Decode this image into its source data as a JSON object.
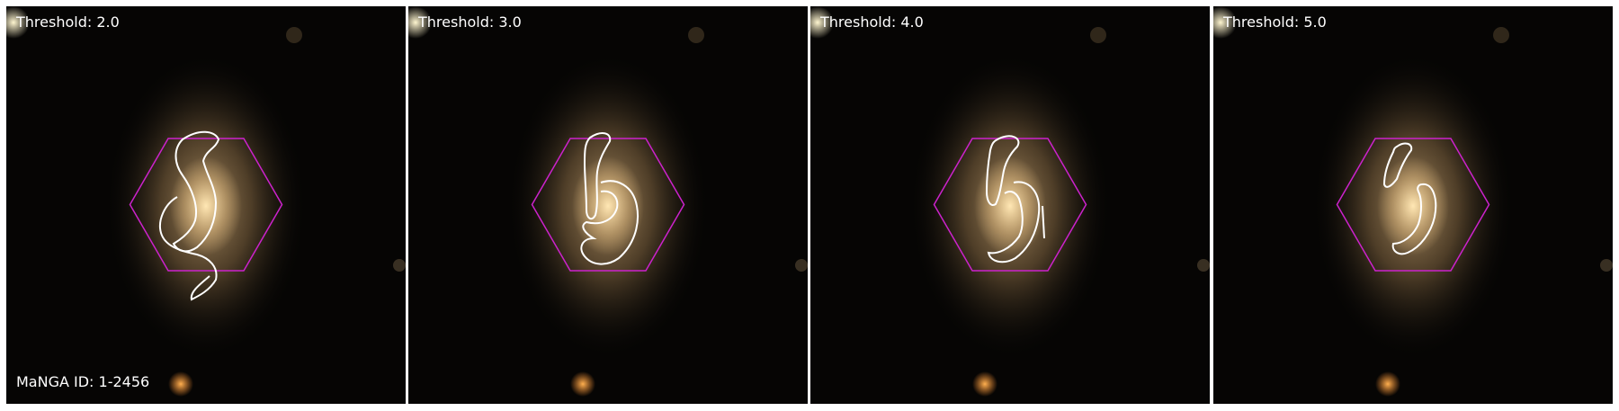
{
  "figure": {
    "panels": [
      {
        "label": "Threshold: 2.0"
      },
      {
        "label": "Threshold: 3.0"
      },
      {
        "label": "Threshold: 4.0"
      },
      {
        "label": "Threshold: 5.0"
      }
    ],
    "manga_id_label": "MaNGA ID: 1-2456"
  },
  "colors": {
    "background": "#060504",
    "galaxy_core": "#ffe7b4",
    "galaxy_halo": "#c9a877",
    "hexagon_outline": "#cc22cc",
    "contour_line": "#ffffff",
    "label_text": "#ffffff"
  }
}
